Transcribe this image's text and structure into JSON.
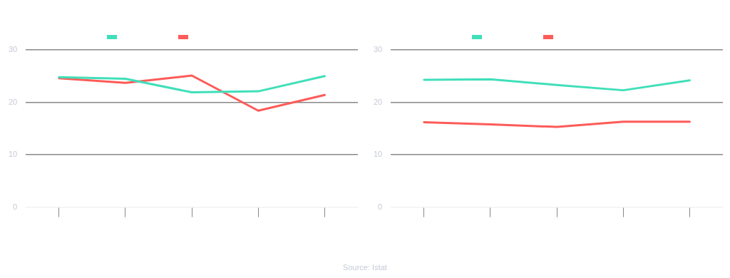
{
  "chart_data": [
    {
      "type": "line",
      "categories": [
        null,
        null,
        null,
        null,
        null
      ],
      "series": [
        {
          "color": "#40dfb9",
          "values": [
            24.8,
            24.5,
            21.9,
            22.1,
            25.0
          ]
        },
        {
          "color": "#fd5b58",
          "values": [
            24.6,
            23.7,
            25.1,
            18.4,
            21.4
          ]
        }
      ],
      "ylim": [
        0,
        30
      ],
      "yticks": [
        0,
        10,
        20,
        30
      ],
      "grid": "y",
      "marker": "none",
      "line_style": "solid",
      "annotations": [
        "Source: Istat"
      ]
    },
    {
      "type": "line",
      "categories": [
        null,
        null,
        null,
        null,
        null
      ],
      "series": [
        {
          "color": "#40dfb9",
          "values": [
            24.3,
            24.4,
            23.3,
            22.3,
            24.2
          ]
        },
        {
          "color": "#fd5b58",
          "values": [
            16.2,
            15.8,
            15.3,
            16.3,
            16.3
          ]
        }
      ],
      "ylim": [
        0,
        30
      ],
      "yticks": [
        0,
        10,
        20,
        30
      ],
      "grid": "y",
      "marker": "none",
      "line_style": "solid"
    }
  ]
}
